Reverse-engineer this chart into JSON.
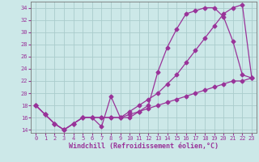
{
  "xlabel": "Windchill (Refroidissement éolien,°C)",
  "bg_color": "#cce8e8",
  "grid_color": "#aacccc",
  "line_color": "#993399",
  "xlim": [
    -0.5,
    23.5
  ],
  "ylim": [
    13.5,
    35.0
  ],
  "yticks": [
    14,
    16,
    18,
    20,
    22,
    24,
    26,
    28,
    30,
    32,
    34
  ],
  "xticks": [
    0,
    1,
    2,
    3,
    4,
    5,
    6,
    7,
    8,
    9,
    10,
    11,
    12,
    13,
    14,
    15,
    16,
    17,
    18,
    19,
    20,
    21,
    22,
    23
  ],
  "line1_x": [
    0,
    1,
    2,
    3,
    4,
    5,
    6,
    7,
    8,
    9,
    10,
    11,
    12,
    13,
    14,
    15,
    16,
    17,
    18,
    19,
    20,
    21,
    22,
    23
  ],
  "line1_y": [
    18.0,
    16.5,
    15.0,
    14.0,
    15.0,
    16.0,
    16.0,
    14.5,
    19.5,
    16.0,
    16.0,
    17.0,
    18.0,
    23.5,
    27.5,
    30.5,
    33.0,
    33.5,
    34.0,
    34.0,
    32.5,
    28.5,
    23.0,
    22.5
  ],
  "line2_x": [
    0,
    1,
    2,
    3,
    4,
    5,
    6,
    7,
    8,
    9,
    10,
    11,
    12,
    13,
    14,
    15,
    16,
    17,
    18,
    19,
    20,
    21,
    22,
    23
  ],
  "line2_y": [
    18.0,
    16.5,
    15.0,
    14.0,
    15.0,
    16.0,
    16.0,
    16.0,
    16.0,
    16.0,
    17.0,
    18.0,
    19.0,
    20.0,
    21.5,
    23.0,
    25.0,
    27.0,
    29.0,
    31.0,
    33.0,
    34.0,
    34.5,
    22.5
  ],
  "line3_x": [
    0,
    1,
    2,
    3,
    4,
    5,
    6,
    7,
    8,
    9,
    10,
    11,
    12,
    13,
    14,
    15,
    16,
    17,
    18,
    19,
    20,
    21,
    22,
    23
  ],
  "line3_y": [
    18.0,
    16.5,
    15.0,
    14.0,
    15.0,
    16.0,
    16.0,
    16.0,
    16.0,
    16.0,
    16.5,
    17.0,
    17.5,
    18.0,
    18.5,
    19.0,
    19.5,
    20.0,
    20.5,
    21.0,
    21.5,
    22.0,
    22.0,
    22.5
  ],
  "marker": "D",
  "markersize": 2.5,
  "linewidth": 0.9,
  "label_fontsize": 6.0,
  "tick_fontsize": 5.0
}
